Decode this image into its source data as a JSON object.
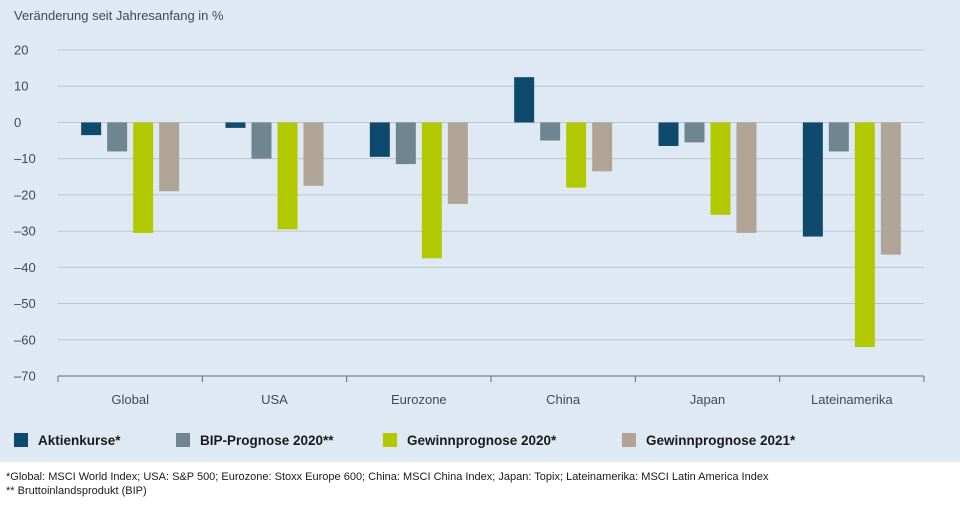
{
  "colors": {
    "background": "#dfe9f3",
    "gridline": "#b9c5d1",
    "axis": "#5f6b76",
    "text": "#3f4a55",
    "series": [
      "#0e4a6e",
      "#6f858f",
      "#b2c901",
      "#b0a497"
    ]
  },
  "chart_data": {
    "type": "bar",
    "title": "Veränderung seit Jahresanfang in %",
    "xlabel": "",
    "ylabel": "Veränderung seit Jahresanfang in %",
    "ylim": [
      -70,
      20
    ],
    "yticks": [
      20,
      10,
      0,
      -10,
      -20,
      -30,
      -40,
      -50,
      -60,
      -70
    ],
    "ytick_labels": [
      "20",
      "10",
      "0",
      "–10",
      "–20",
      "–30",
      "–40",
      "–50",
      "–60",
      "–70"
    ],
    "grid": true,
    "legend_position": "bottom",
    "categories": [
      "Global",
      "USA",
      "Eurozone",
      "China",
      "Japan",
      "Lateinamerika"
    ],
    "series": [
      {
        "name": "Aktienkurse*",
        "values": [
          -3.5,
          -1.5,
          -9.5,
          12.5,
          -6.5,
          -31.5
        ]
      },
      {
        "name": "BIP-Prognose 2020**",
        "values": [
          -8,
          -10,
          -11.5,
          -5,
          -5.5,
          -8
        ]
      },
      {
        "name": "Gewinnprognose 2020*",
        "values": [
          -30.5,
          -29.5,
          -37.5,
          -18,
          -25.5,
          -62
        ]
      },
      {
        "name": "Gewinnprognose 2021*",
        "values": [
          -19,
          -17.5,
          -22.5,
          -13.5,
          -30.5,
          -36.5
        ]
      }
    ]
  },
  "footnotes": {
    "line1": "*Global: MSCI World Index; USA: S&P 500; Eurozone: Stoxx Europe 600; China: MSCI China Index; Japan: Topix; Lateinamerika: MSCI Latin America Index",
    "line2": "** Bruttoinlandsprodukt (BIP)"
  }
}
